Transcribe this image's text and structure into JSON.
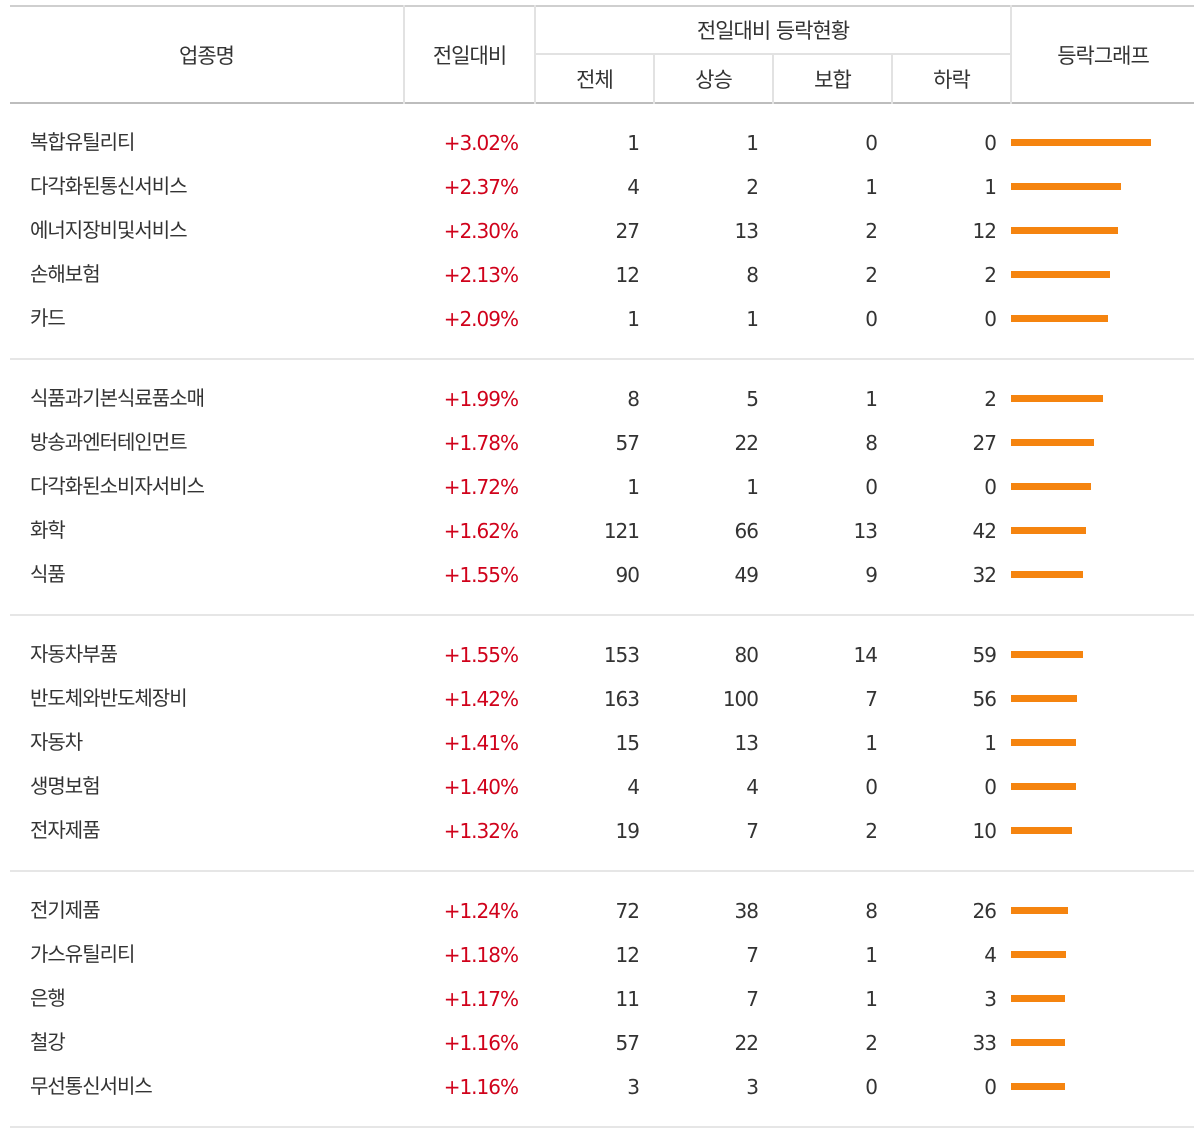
{
  "header": {
    "sector": "업종명",
    "change": "전일대비",
    "status_group": "전일대비 등락현황",
    "total": "전체",
    "up": "상승",
    "flat": "보합",
    "down": "하락",
    "graph": "등락그래프"
  },
  "colors": {
    "positive": "#d0021b",
    "bar": "#f5840f"
  },
  "groups": [
    {
      "rows": [
        {
          "name": "복합유틸리티",
          "change": "+3.02%",
          "change_value": 3.02,
          "total": "1",
          "up": "1",
          "flat": "0",
          "down": "0"
        },
        {
          "name": "다각화된통신서비스",
          "change": "+2.37%",
          "change_value": 2.37,
          "total": "4",
          "up": "2",
          "flat": "1",
          "down": "1"
        },
        {
          "name": "에너지장비및서비스",
          "change": "+2.30%",
          "change_value": 2.3,
          "total": "27",
          "up": "13",
          "flat": "2",
          "down": "12"
        },
        {
          "name": "손해보험",
          "change": "+2.13%",
          "change_value": 2.13,
          "total": "12",
          "up": "8",
          "flat": "2",
          "down": "2"
        },
        {
          "name": "카드",
          "change": "+2.09%",
          "change_value": 2.09,
          "total": "1",
          "up": "1",
          "flat": "0",
          "down": "0"
        }
      ]
    },
    {
      "rows": [
        {
          "name": "식품과기본식료품소매",
          "change": "+1.99%",
          "change_value": 1.99,
          "total": "8",
          "up": "5",
          "flat": "1",
          "down": "2"
        },
        {
          "name": "방송과엔터테인먼트",
          "change": "+1.78%",
          "change_value": 1.78,
          "total": "57",
          "up": "22",
          "flat": "8",
          "down": "27"
        },
        {
          "name": "다각화된소비자서비스",
          "change": "+1.72%",
          "change_value": 1.72,
          "total": "1",
          "up": "1",
          "flat": "0",
          "down": "0"
        },
        {
          "name": "화학",
          "change": "+1.62%",
          "change_value": 1.62,
          "total": "121",
          "up": "66",
          "flat": "13",
          "down": "42"
        },
        {
          "name": "식품",
          "change": "+1.55%",
          "change_value": 1.55,
          "total": "90",
          "up": "49",
          "flat": "9",
          "down": "32"
        }
      ]
    },
    {
      "rows": [
        {
          "name": "자동차부품",
          "change": "+1.55%",
          "change_value": 1.55,
          "total": "153",
          "up": "80",
          "flat": "14",
          "down": "59"
        },
        {
          "name": "반도체와반도체장비",
          "change": "+1.42%",
          "change_value": 1.42,
          "total": "163",
          "up": "100",
          "flat": "7",
          "down": "56"
        },
        {
          "name": "자동차",
          "change": "+1.41%",
          "change_value": 1.41,
          "total": "15",
          "up": "13",
          "flat": "1",
          "down": "1"
        },
        {
          "name": "생명보험",
          "change": "+1.40%",
          "change_value": 1.4,
          "total": "4",
          "up": "4",
          "flat": "0",
          "down": "0"
        },
        {
          "name": "전자제품",
          "change": "+1.32%",
          "change_value": 1.32,
          "total": "19",
          "up": "7",
          "flat": "2",
          "down": "10"
        }
      ]
    },
    {
      "rows": [
        {
          "name": "전기제품",
          "change": "+1.24%",
          "change_value": 1.24,
          "total": "72",
          "up": "38",
          "flat": "8",
          "down": "26"
        },
        {
          "name": "가스유틸리티",
          "change": "+1.18%",
          "change_value": 1.18,
          "total": "12",
          "up": "7",
          "flat": "1",
          "down": "4"
        },
        {
          "name": "은행",
          "change": "+1.17%",
          "change_value": 1.17,
          "total": "11",
          "up": "7",
          "flat": "1",
          "down": "3"
        },
        {
          "name": "철강",
          "change": "+1.16%",
          "change_value": 1.16,
          "total": "57",
          "up": "22",
          "flat": "2",
          "down": "33"
        },
        {
          "name": "무선통신서비스",
          "change": "+1.16%",
          "change_value": 1.16,
          "total": "3",
          "up": "3",
          "flat": "0",
          "down": "0"
        }
      ]
    }
  ]
}
